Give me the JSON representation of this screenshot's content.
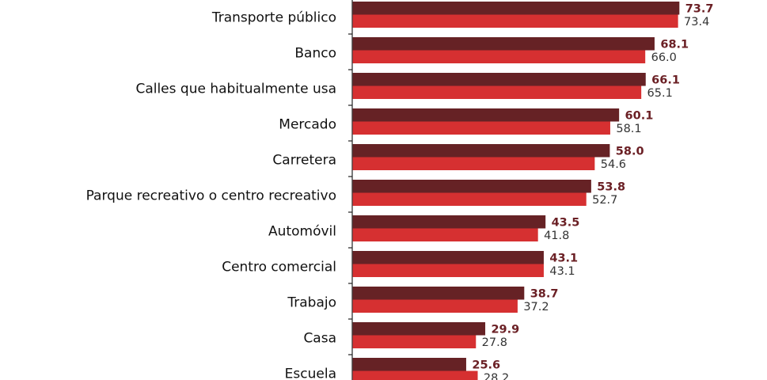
{
  "chart_data": {
    "type": "bar",
    "orientation": "horizontal",
    "categories": [
      "Transporte público",
      "Banco",
      "Calles que habitualmente usa",
      "Mercado",
      "Carretera",
      "Parque recreativo o centro recreativo",
      "Automóvil",
      "Centro comercial",
      "Trabajo",
      "Casa",
      "Escuela"
    ],
    "series": [
      {
        "color": "#662225",
        "values": [
          73.7,
          68.1,
          66.1,
          60.1,
          58.0,
          53.8,
          43.5,
          43.1,
          38.7,
          29.9,
          25.6
        ],
        "labels": [
          "73.7",
          "68.1",
          "66.1",
          "60.1",
          "58.0",
          "53.8",
          "43.5",
          "43.1",
          "38.7",
          "29.9",
          "25.6"
        ]
      },
      {
        "color": "#d63031",
        "values": [
          73.4,
          66.0,
          65.1,
          58.1,
          54.6,
          52.7,
          41.8,
          43.1,
          37.2,
          27.8,
          28.2
        ],
        "labels": [
          "73.4",
          "66.0",
          "65.1",
          "58.1",
          "54.6",
          "52.7",
          "41.8",
          "43.1",
          "37.2",
          "27.8",
          "28.2"
        ]
      }
    ],
    "xlim": [
      0,
      100
    ],
    "grid": false,
    "legend": "none"
  }
}
